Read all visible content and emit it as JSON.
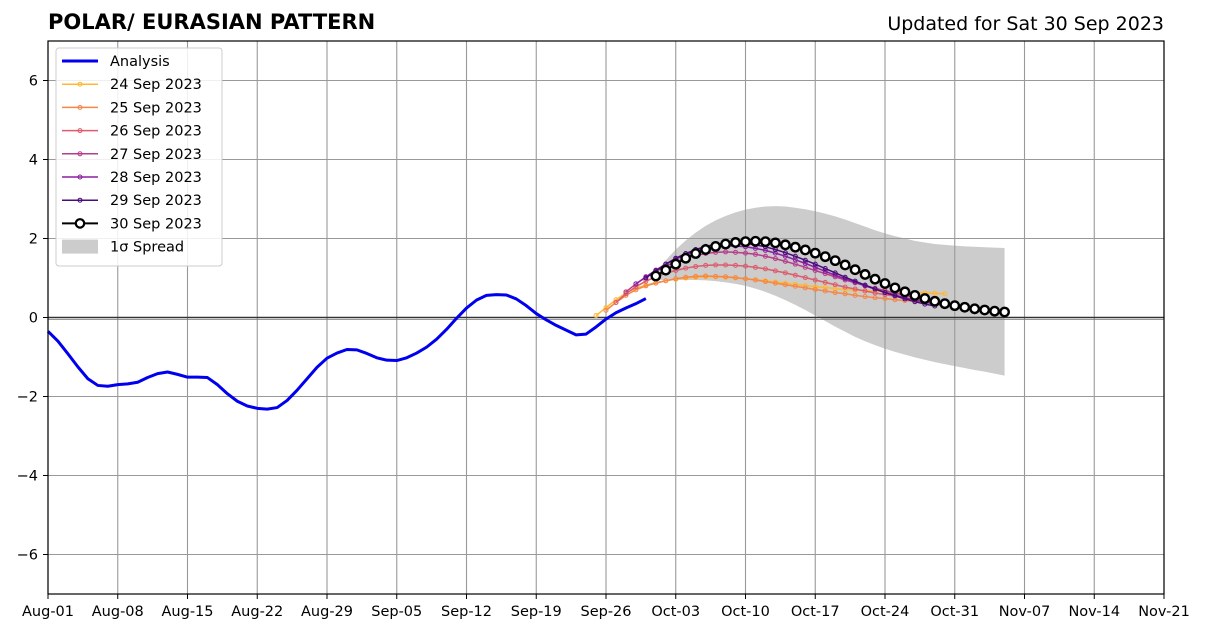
{
  "chart_data": {
    "type": "line",
    "title": "POLAR/ EURASIAN  PATTERN",
    "subtitle": "Updated for Sat 30 Sep 2023",
    "xlabel": "",
    "ylabel": "",
    "xlim": [
      "2023-08-01",
      "2023-11-21"
    ],
    "ylim": [
      -7,
      7
    ],
    "x_ticks": [
      "2023-08-01",
      "2023-08-08",
      "2023-08-15",
      "2023-08-22",
      "2023-08-29",
      "2023-09-05",
      "2023-09-12",
      "2023-09-19",
      "2023-09-26",
      "2023-10-03",
      "2023-10-10",
      "2023-10-17",
      "2023-10-24",
      "2023-10-31",
      "2023-11-07",
      "2023-11-14",
      "2023-11-21"
    ],
    "x_tick_labels": [
      "Aug-01",
      "Aug-08",
      "Aug-15",
      "Aug-22",
      "Aug-29",
      "Sep-05",
      "Sep-12",
      "Sep-19",
      "Sep-26",
      "Oct-03",
      "Oct-10",
      "Oct-17",
      "Oct-24",
      "Oct-31",
      "Nov-07",
      "Nov-14",
      "Nov-21"
    ],
    "y_ticks": [
      -6,
      -4,
      -2,
      0,
      2,
      4,
      6
    ],
    "y_tick_labels": [
      "−6",
      "−4",
      "−2",
      "0",
      "2",
      "4",
      "6"
    ],
    "grid": true,
    "zero_line": true,
    "legend_position": "top-left",
    "analysis": {
      "name": "Analysis",
      "color": "#0000ee",
      "x": [
        "2023-08-01",
        "2023-08-02",
        "2023-08-03",
        "2023-08-04",
        "2023-08-05",
        "2023-08-06",
        "2023-08-07",
        "2023-08-08",
        "2023-08-09",
        "2023-08-10",
        "2023-08-11",
        "2023-08-12",
        "2023-08-13",
        "2023-08-14",
        "2023-08-15",
        "2023-08-16",
        "2023-08-17",
        "2023-08-18",
        "2023-08-19",
        "2023-08-20",
        "2023-08-21",
        "2023-08-22",
        "2023-08-23",
        "2023-08-24",
        "2023-08-25",
        "2023-08-26",
        "2023-08-27",
        "2023-08-28",
        "2023-08-29",
        "2023-08-30",
        "2023-08-31",
        "2023-09-01",
        "2023-09-02",
        "2023-09-03",
        "2023-09-04",
        "2023-09-05",
        "2023-09-06",
        "2023-09-07",
        "2023-09-08",
        "2023-09-09",
        "2023-09-10",
        "2023-09-11",
        "2023-09-12",
        "2023-09-13",
        "2023-09-14",
        "2023-09-15",
        "2023-09-16",
        "2023-09-17",
        "2023-09-18",
        "2023-09-19",
        "2023-09-20",
        "2023-09-21",
        "2023-09-22",
        "2023-09-23",
        "2023-09-24",
        "2023-09-25",
        "2023-09-26",
        "2023-09-27",
        "2023-09-28",
        "2023-09-29",
        "2023-09-30"
      ],
      "y": [
        -0.35,
        -0.6,
        -0.92,
        -1.25,
        -1.55,
        -1.72,
        -1.74,
        -1.7,
        -1.68,
        -1.64,
        -1.52,
        -1.42,
        -1.38,
        -1.44,
        -1.51,
        -1.51,
        -1.52,
        -1.7,
        -1.93,
        -2.12,
        -2.24,
        -2.3,
        -2.32,
        -2.28,
        -2.1,
        -1.84,
        -1.55,
        -1.26,
        -1.03,
        -0.9,
        -0.81,
        -0.82,
        -0.91,
        -1.02,
        -1.08,
        -1.09,
        -1.02,
        -0.9,
        -0.75,
        -0.55,
        -0.3,
        -0.02,
        0.24,
        0.44,
        0.56,
        0.58,
        0.57,
        0.47,
        0.3,
        0.1,
        -0.06,
        -0.2,
        -0.32,
        -0.44,
        -0.42,
        -0.24,
        -0.04,
        0.12,
        0.24,
        0.35,
        0.48
      ]
    },
    "forecasts": [
      {
        "name": "24 Sep 2023",
        "color": "#ffb833",
        "start": "2023-09-25",
        "values": [
          0.05,
          0.25,
          0.45,
          0.62,
          0.74,
          0.82,
          0.88,
          0.93,
          0.97,
          1.0,
          1.02,
          1.03,
          1.03,
          1.02,
          1.0,
          0.98,
          0.96,
          0.93,
          0.9,
          0.87,
          0.84,
          0.81,
          0.78,
          0.76,
          0.73,
          0.71,
          0.69,
          0.68,
          0.67,
          0.66,
          0.65,
          0.64,
          0.63,
          0.62,
          0.61,
          0.6
        ]
      },
      {
        "name": "25 Sep 2023",
        "color": "#f4874b",
        "start": "2023-09-26",
        "values": [
          0.18,
          0.38,
          0.56,
          0.7,
          0.8,
          0.87,
          0.93,
          0.98,
          1.02,
          1.04,
          1.05,
          1.04,
          1.03,
          1.01,
          0.98,
          0.95,
          0.91,
          0.87,
          0.83,
          0.79,
          0.75,
          0.71,
          0.67,
          0.63,
          0.6,
          0.56,
          0.53,
          0.5,
          0.48,
          0.45,
          0.43,
          0.41,
          0.39,
          0.37,
          0.35
        ]
      },
      {
        "name": "26 Sep 2023",
        "color": "#dc5c6d",
        "start": "2023-09-27",
        "values": [
          0.38,
          0.6,
          0.78,
          0.92,
          1.03,
          1.12,
          1.19,
          1.25,
          1.29,
          1.32,
          1.33,
          1.33,
          1.32,
          1.3,
          1.27,
          1.23,
          1.18,
          1.13,
          1.07,
          1.01,
          0.95,
          0.89,
          0.83,
          0.77,
          0.72,
          0.67,
          0.62,
          0.58,
          0.54,
          0.5,
          0.47,
          0.44,
          0.41,
          0.38
        ]
      },
      {
        "name": "27 Sep 2023",
        "color": "#b63e8c",
        "start": "2023-09-28",
        "values": [
          0.65,
          0.85,
          1.02,
          1.17,
          1.3,
          1.41,
          1.5,
          1.57,
          1.62,
          1.65,
          1.66,
          1.65,
          1.63,
          1.6,
          1.55,
          1.49,
          1.42,
          1.35,
          1.27,
          1.19,
          1.11,
          1.03,
          0.95,
          0.88,
          0.81,
          0.74,
          0.68,
          0.62,
          0.56,
          0.51,
          0.46,
          0.42,
          0.38
        ]
      },
      {
        "name": "28 Sep 2023",
        "color": "#8c1fa3",
        "start": "2023-09-29",
        "values": [
          0.85,
          1.03,
          1.2,
          1.35,
          1.48,
          1.59,
          1.68,
          1.75,
          1.79,
          1.81,
          1.81,
          1.79,
          1.75,
          1.7,
          1.63,
          1.55,
          1.46,
          1.37,
          1.27,
          1.17,
          1.07,
          0.98,
          0.89,
          0.8,
          0.72,
          0.64,
          0.57,
          0.5,
          0.44,
          0.39,
          0.34,
          0.3
        ]
      },
      {
        "name": "29 Sep 2023",
        "color": "#4b0c7a",
        "start": "2023-09-30",
        "values": [
          1.0,
          1.18,
          1.35,
          1.5,
          1.62,
          1.72,
          1.8,
          1.85,
          1.88,
          1.89,
          1.88,
          1.84,
          1.79,
          1.72,
          1.64,
          1.55,
          1.45,
          1.35,
          1.24,
          1.13,
          1.02,
          0.92,
          0.82,
          0.72,
          0.63,
          0.55,
          0.47,
          0.4,
          0.34,
          0.29
        ]
      }
    ],
    "current_forecast": {
      "name": "30 Sep 2023",
      "color": "#000000",
      "start": "2023-10-01",
      "values": [
        1.05,
        1.2,
        1.35,
        1.5,
        1.62,
        1.72,
        1.8,
        1.86,
        1.9,
        1.92,
        1.93,
        1.92,
        1.89,
        1.84,
        1.78,
        1.71,
        1.63,
        1.54,
        1.44,
        1.33,
        1.21,
        1.09,
        0.97,
        0.86,
        0.75,
        0.65,
        0.56,
        0.48,
        0.41,
        0.35,
        0.3,
        0.26,
        0.22,
        0.19,
        0.16,
        0.14
      ]
    },
    "spread": {
      "name": "1σ Spread",
      "color": "#cccccc",
      "start": "2023-10-01",
      "upper": [
        1.15,
        1.45,
        1.72,
        1.95,
        2.15,
        2.32,
        2.46,
        2.57,
        2.66,
        2.73,
        2.78,
        2.81,
        2.82,
        2.81,
        2.78,
        2.74,
        2.69,
        2.63,
        2.56,
        2.48,
        2.39,
        2.3,
        2.21,
        2.13,
        2.06,
        2.0,
        1.94,
        1.9,
        1.86,
        1.84,
        1.82,
        1.8,
        1.79,
        1.78,
        1.77,
        1.76
      ],
      "lower": [
        0.95,
        0.95,
        0.95,
        0.95,
        0.95,
        0.94,
        0.92,
        0.89,
        0.85,
        0.8,
        0.73,
        0.65,
        0.55,
        0.44,
        0.32,
        0.19,
        0.05,
        -0.09,
        -0.23,
        -0.36,
        -0.49,
        -0.6,
        -0.7,
        -0.79,
        -0.87,
        -0.94,
        -1.01,
        -1.07,
        -1.13,
        -1.18,
        -1.23,
        -1.28,
        -1.33,
        -1.37,
        -1.42,
        -1.47
      ]
    }
  }
}
